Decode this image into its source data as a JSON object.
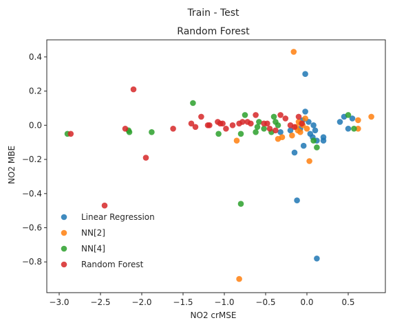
{
  "figure": {
    "suptitle": "Train - Test"
  },
  "chart_data": {
    "type": "scatter",
    "title": "Random Forest",
    "xlabel": "NO2 crMSE",
    "ylabel": "NO2 MBE",
    "xlim": [
      -3.15,
      0.95
    ],
    "ylim": [
      -0.98,
      0.5
    ],
    "xticks": [
      -3.0,
      -2.5,
      -2.0,
      -1.5,
      -1.0,
      -0.5,
      0.0,
      0.5
    ],
    "xtick_labels": [
      "−3.0",
      "−2.5",
      "−2.0",
      "−1.5",
      "−1.0",
      "−0.5",
      "0.0",
      "0.5"
    ],
    "yticks": [
      0.4,
      0.2,
      0.0,
      -0.2,
      -0.4,
      -0.6,
      -0.8
    ],
    "ytick_labels": [
      "0.4",
      "0.2",
      "0.0",
      "−0.2",
      "−0.4",
      "−0.6",
      "−0.8"
    ],
    "grid": false,
    "legend_position": "lower-left",
    "series": [
      {
        "name": "Linear Regression",
        "color": "#1f77b4",
        "points": [
          [
            -0.02,
            0.3
          ],
          [
            -0.12,
            -0.44
          ],
          [
            0.12,
            -0.78
          ],
          [
            -0.02,
            0.08
          ],
          [
            -0.05,
            0.03
          ],
          [
            -0.08,
            -0.02
          ],
          [
            0.02,
            0.02
          ],
          [
            0.1,
            -0.03
          ],
          [
            0.07,
            -0.07
          ],
          [
            0.12,
            -0.09
          ],
          [
            0.2,
            -0.09
          ],
          [
            0.2,
            -0.07
          ],
          [
            -0.04,
            -0.12
          ],
          [
            -0.15,
            -0.16
          ],
          [
            -0.2,
            -0.03
          ],
          [
            -0.32,
            -0.04
          ],
          [
            0.08,
            0.0
          ],
          [
            0.04,
            -0.05
          ],
          [
            0.4,
            0.02
          ],
          [
            0.45,
            0.05
          ],
          [
            0.5,
            -0.02
          ],
          [
            0.55,
            0.04
          ]
        ]
      },
      {
        "name": "NN[2]",
        "color": "#ff7f0e",
        "points": [
          [
            -0.16,
            0.43
          ],
          [
            -0.82,
            -0.9
          ],
          [
            0.03,
            -0.21
          ],
          [
            -0.85,
            -0.09
          ],
          [
            -0.1,
            0.02
          ],
          [
            -0.05,
            0.0
          ],
          [
            0.0,
            -0.02
          ],
          [
            -0.08,
            -0.04
          ],
          [
            -0.13,
            -0.01
          ],
          [
            -0.18,
            -0.06
          ],
          [
            -0.3,
            -0.07
          ],
          [
            -0.35,
            -0.08
          ],
          [
            -0.02,
            0.04
          ],
          [
            0.62,
            0.03
          ],
          [
            0.62,
            -0.02
          ],
          [
            0.78,
            0.05
          ],
          [
            -0.07,
            0.01
          ],
          [
            -0.11,
            -0.03
          ]
        ]
      },
      {
        "name": "NN[4]",
        "color": "#2ca02c",
        "points": [
          [
            -2.9,
            -0.05
          ],
          [
            -2.16,
            -0.03
          ],
          [
            -2.15,
            -0.04
          ],
          [
            -1.88,
            -0.04
          ],
          [
            -1.38,
            0.13
          ],
          [
            -1.07,
            -0.05
          ],
          [
            -0.8,
            -0.46
          ],
          [
            -0.75,
            0.06
          ],
          [
            -0.6,
            -0.01
          ],
          [
            -0.58,
            0.02
          ],
          [
            -0.52,
            -0.02
          ],
          [
            -0.43,
            -0.04
          ],
          [
            -0.4,
            0.05
          ],
          [
            -0.38,
            0.02
          ],
          [
            -0.35,
            0.0
          ],
          [
            -0.8,
            -0.05
          ],
          [
            0.12,
            -0.13
          ],
          [
            0.5,
            0.06
          ],
          [
            0.57,
            -0.02
          ],
          [
            -0.62,
            -0.04
          ],
          [
            0.08,
            -0.09
          ]
        ]
      },
      {
        "name": "Random Forest",
        "color": "#d62728",
        "points": [
          [
            -2.86,
            -0.05
          ],
          [
            -2.2,
            -0.02
          ],
          [
            -2.1,
            0.21
          ],
          [
            -2.45,
            -0.47
          ],
          [
            -1.95,
            -0.19
          ],
          [
            -1.62,
            -0.02
          ],
          [
            -1.4,
            0.01
          ],
          [
            -1.35,
            -0.01
          ],
          [
            -1.28,
            0.05
          ],
          [
            -1.2,
            0.0
          ],
          [
            -1.18,
            0.0
          ],
          [
            -1.08,
            0.02
          ],
          [
            -1.05,
            0.01
          ],
          [
            -1.02,
            0.01
          ],
          [
            -0.98,
            -0.02
          ],
          [
            -0.9,
            0.0
          ],
          [
            -0.82,
            0.01
          ],
          [
            -0.78,
            0.02
          ],
          [
            -0.72,
            0.02
          ],
          [
            -0.68,
            0.01
          ],
          [
            -0.62,
            0.06
          ],
          [
            -0.52,
            0.01
          ],
          [
            -0.48,
            0.01
          ],
          [
            -0.45,
            -0.02
          ],
          [
            -0.38,
            -0.03
          ],
          [
            -0.32,
            0.06
          ],
          [
            -0.26,
            0.04
          ],
          [
            -0.2,
            0.0
          ],
          [
            -0.15,
            -0.01
          ],
          [
            -0.1,
            0.05
          ],
          [
            -0.06,
            0.01
          ]
        ]
      }
    ]
  }
}
